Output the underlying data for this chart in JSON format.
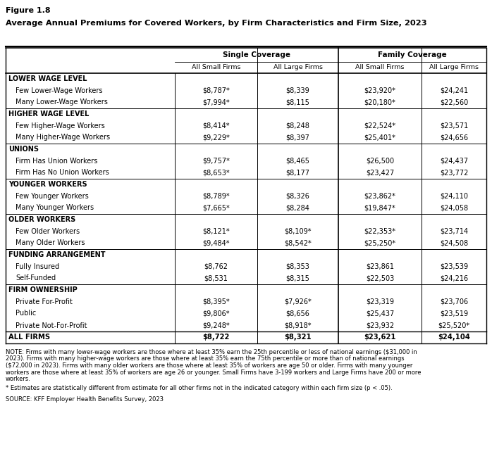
{
  "figure_label": "Figure 1.8",
  "title": "Average Annual Premiums for Covered Workers, by Firm Characteristics and Firm Size, 2023",
  "sections": [
    {
      "header": "LOWER WAGE LEVEL",
      "rows": [
        [
          "Few Lower-Wage Workers",
          "$8,787*",
          "$8,339",
          "$23,920*",
          "$24,241"
        ],
        [
          "Many Lower-Wage Workers",
          "$7,994*",
          "$8,115",
          "$20,180*",
          "$22,560"
        ]
      ]
    },
    {
      "header": "HIGHER WAGE LEVEL",
      "rows": [
        [
          "Few Higher-Wage Workers",
          "$8,414*",
          "$8,248",
          "$22,524*",
          "$23,571"
        ],
        [
          "Many Higher-Wage Workers",
          "$9,229*",
          "$8,397",
          "$25,401*",
          "$24,656"
        ]
      ]
    },
    {
      "header": "UNIONS",
      "rows": [
        [
          "Firm Has Union Workers",
          "$9,757*",
          "$8,465",
          "$26,500",
          "$24,437"
        ],
        [
          "Firm Has No Union Workers",
          "$8,653*",
          "$8,177",
          "$23,427",
          "$23,772"
        ]
      ]
    },
    {
      "header": "YOUNGER WORKERS",
      "rows": [
        [
          "Few Younger Workers",
          "$8,789*",
          "$8,326",
          "$23,862*",
          "$24,110"
        ],
        [
          "Many Younger Workers",
          "$7,665*",
          "$8,284",
          "$19,847*",
          "$24,058"
        ]
      ]
    },
    {
      "header": "OLDER WORKERS",
      "rows": [
        [
          "Few Older Workers",
          "$8,121*",
          "$8,109*",
          "$22,353*",
          "$23,714"
        ],
        [
          "Many Older Workers",
          "$9,484*",
          "$8,542*",
          "$25,250*",
          "$24,508"
        ]
      ]
    },
    {
      "header": "FUNDING ARRANGEMENT",
      "rows": [
        [
          "Fully Insured",
          "$8,762",
          "$8,353",
          "$23,861",
          "$23,539"
        ],
        [
          "Self-Funded",
          "$8,531",
          "$8,315",
          "$22,503",
          "$24,216"
        ]
      ]
    },
    {
      "header": "FIRM OWNERSHIP",
      "rows": [
        [
          "Private For-Profit",
          "$8,395*",
          "$7,926*",
          "$23,319",
          "$23,706"
        ],
        [
          "Public",
          "$9,806*",
          "$8,656",
          "$25,437",
          "$23,519"
        ],
        [
          "Private Not-For-Profit",
          "$9,248*",
          "$8,918*",
          "$23,932",
          "$25,520*"
        ]
      ]
    }
  ],
  "all_firms_row": [
    "ALL FIRMS",
    "$8,722",
    "$8,321",
    "$23,621",
    "$24,104"
  ],
  "note_lines": [
    "NOTE: Firms with many lower-wage workers are those where at least 35% earn the 25th percentile or less of national earnings ($31,000 in",
    "2023). Firms with many higher-wage workers are those where at least 35% earn the 75th percentile or more than of national earnings",
    "($72,000 in 2023). Firms with many older workers are those where at least 35% of workers are age 50 or older. Firms with many younger",
    "workers are those where at least 35% of workers are age 26 or younger. Small Firms have 3-199 workers and Large Firms have 200 or more",
    "workers."
  ],
  "asterisk_note": "* Estimates are statistically different from estimate for all other firms not in the indicated category within each firm size (p < .05).",
  "source_text": "SOURCE: KFF Employer Health Benefits Survey, 2023",
  "col_headers_top_left": "Single Coverage",
  "col_headers_top_right": "Family Coverage",
  "col_sub": [
    "All Small Firms",
    "All Large Firms",
    "All Small Firms",
    "All Large Firms"
  ]
}
